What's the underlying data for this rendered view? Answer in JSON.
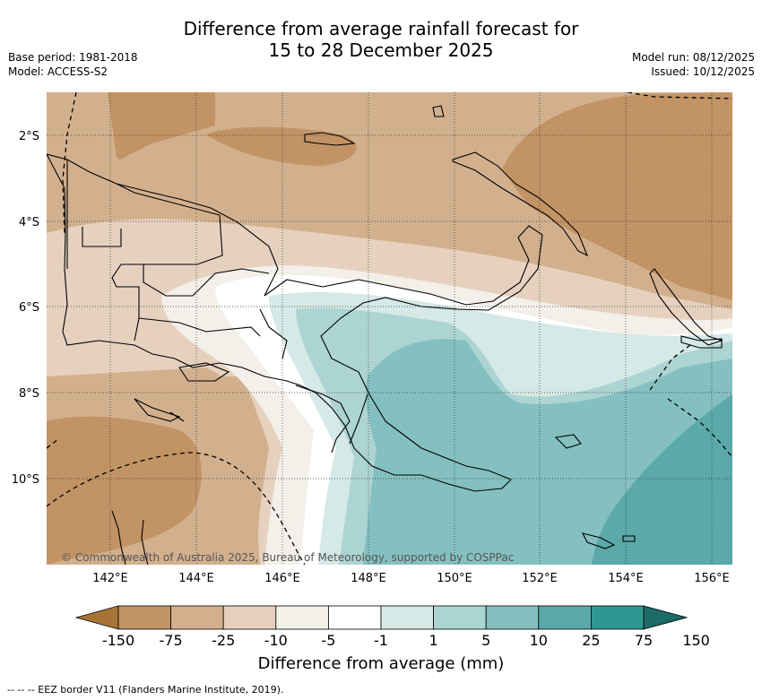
{
  "header": {
    "title_line1": "Difference from average rainfall forecast for",
    "title_line2": "15 to 28 December 2025",
    "base_period": "Base period: 1981-2018",
    "model": "Model: ACCESS-S2",
    "model_run": "Model run: 08/12/2025",
    "issued": "Issued: 10/12/2025"
  },
  "map": {
    "lat_labels": [
      "2°S",
      "4°S",
      "6°S",
      "8°S",
      "10°S"
    ],
    "lon_labels": [
      "142°E",
      "144°E",
      "146°E",
      "148°E",
      "150°E",
      "152°E",
      "154°E",
      "156°E"
    ],
    "copyright": "© Commonwealth of Australia 2025, Bureau of Meteorology, supported by COSPPac"
  },
  "colorbar": {
    "ticks": [
      "-150",
      "-75",
      "-25",
      "-10",
      "-5",
      "-1",
      "1",
      "5",
      "10",
      "25",
      "75",
      "150"
    ],
    "colors": [
      "#a87436",
      "#c29365",
      "#d2b08e",
      "#e6d1bf",
      "#f3efe9",
      "#ffffff",
      "#d5e9e7",
      "#acd4d2",
      "#84c0bf",
      "#5ba9a9",
      "#2f9792",
      "#1c6b67"
    ],
    "title": "Difference from average (mm)"
  },
  "footnote": "--  --  -- EEZ border V11 (Flanders Marine Institute, 2019)."
}
